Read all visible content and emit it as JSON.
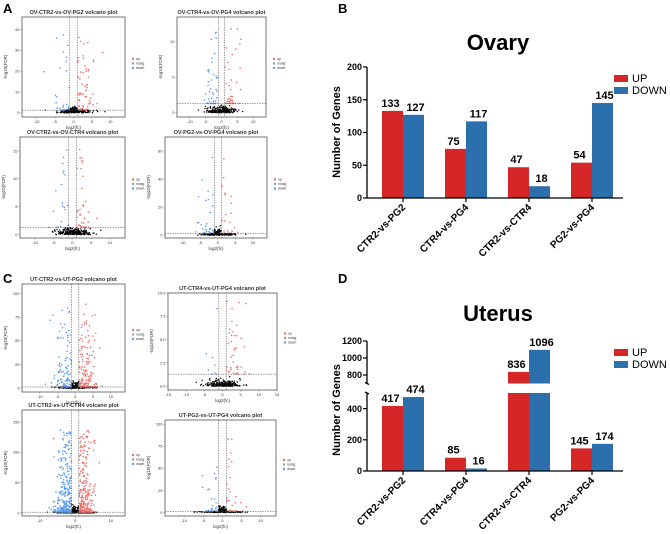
{
  "panels": [
    "A",
    "B",
    "C",
    "D"
  ],
  "colors": {
    "up": "#d62728",
    "down": "#2b6fad",
    "vol_up": "#f0706a",
    "vol_down": "#5b9cf0",
    "vol_nosig": "#000000"
  },
  "chart_data": [
    {
      "type": "scatter",
      "panel": "A",
      "title": "OV-CTR2-vs-OV-PG2 volcano plot",
      "xlabel": "log2(fc)",
      "ylabel": "-log10(FDR)",
      "legend": [
        "up",
        "nosig",
        "down"
      ],
      "xticks": [
        -10,
        -5,
        0,
        5,
        10
      ],
      "yticks": [
        0,
        10,
        20,
        30,
        40
      ],
      "xlim": [
        -14,
        14
      ],
      "ylim": [
        -2,
        46
      ],
      "fc_threshold": 1,
      "fdr_threshold": 1.3
    },
    {
      "type": "scatter",
      "panel": "A",
      "title": "OV-CTR4-vs-OV-PG4 volcano plot",
      "xlabel": "log2(fc)",
      "ylabel": "-log10(FDR)",
      "legend": [
        "up",
        "nosig",
        "down"
      ],
      "xticks": [
        -10,
        -5,
        0,
        5,
        10
      ],
      "yticks": [
        0,
        5,
        10
      ],
      "xlim": [
        -14,
        14
      ],
      "ylim": [
        -0.6,
        13.5
      ],
      "fc_threshold": 1,
      "fdr_threshold": 1.3
    },
    {
      "type": "scatter",
      "panel": "A",
      "title": "OV-CTR2-vs-OV-CTR4 volcano plot",
      "xlabel": "log2(fc)",
      "ylabel": "-log10(FDR)",
      "legend": [
        "up",
        "nosig",
        "down"
      ],
      "xticks": [
        -10,
        -5,
        0,
        5,
        10
      ],
      "yticks": [
        0,
        5,
        10,
        15
      ],
      "xlim": [
        -14,
        14
      ],
      "ylim": [
        -0.6,
        17.5
      ],
      "fc_threshold": 1,
      "fdr_threshold": 1.3
    },
    {
      "type": "scatter",
      "panel": "A",
      "title": "OV-PG2-vs-OV-PG4 volcano plot",
      "xlabel": "log2(fc)",
      "ylabel": "-log10(FDR)",
      "legend": [
        "up",
        "nosig",
        "down"
      ],
      "xticks": [
        -10,
        -5,
        0,
        5,
        10
      ],
      "yticks": [
        0,
        20,
        40,
        60
      ],
      "xlim": [
        -15,
        14
      ],
      "ylim": [
        -2,
        70
      ],
      "fc_threshold": 1,
      "fdr_threshold": 1.3
    },
    {
      "type": "scatter",
      "panel": "C",
      "title": "UT-CTR2-vs-UT-PG2 volcano plot",
      "xlabel": "log2(fc)",
      "ylabel": "-log10(FDR)",
      "legend": [
        "up",
        "nosig",
        "down"
      ],
      "xticks": [
        -10,
        -5,
        0,
        5,
        10
      ],
      "yticks": [
        0,
        25,
        50,
        75,
        100
      ],
      "xlim": [
        -15,
        14
      ],
      "ylim": [
        -4,
        110
      ],
      "fc_threshold": 1,
      "fdr_threshold": 1.3
    },
    {
      "type": "scatter",
      "panel": "C",
      "title": "UT-CTR4-vs-UT-PG4 volcano plot",
      "xlabel": "log2(fc)",
      "ylabel": "-log10(FDR)",
      "legend": [
        "up",
        "nosig",
        "down"
      ],
      "xticks": [
        -15,
        -10,
        -5,
        0,
        5,
        10,
        15
      ],
      "yticks": [
        "0.0",
        "2.5",
        "5.0",
        "7.5",
        "10.0"
      ],
      "xlim": [
        -15,
        15
      ],
      "ylim": [
        -0.4,
        10
      ],
      "fc_threshold": 1,
      "fdr_threshold": 1.3
    },
    {
      "type": "scatter",
      "panel": "C",
      "title": "UT-CTR2-vs-UT-CTR4 volcano plot",
      "xlabel": "log2(fc)",
      "ylabel": "-log10(FDR)",
      "legend": [
        "up",
        "nosig",
        "down"
      ],
      "xticks": [
        -10,
        0,
        10
      ],
      "yticks": [
        0,
        50,
        100,
        150
      ],
      "xlim": [
        -15,
        14
      ],
      "ylim": [
        -5,
        170
      ],
      "fc_threshold": 1,
      "fdr_threshold": 1.3
    },
    {
      "type": "scatter",
      "panel": "C",
      "title": "UT-PG2-vs-UT-PG4 volcano plot",
      "xlabel": "log2(fc)",
      "ylabel": "-log10(FDR)",
      "legend": [
        "up",
        "nosig",
        "down"
      ],
      "xticks": [
        -10,
        -5,
        0,
        5,
        10
      ],
      "yticks": [
        0,
        25,
        50,
        75,
        100
      ],
      "xlim": [
        -15,
        14
      ],
      "ylim": [
        -4,
        105
      ],
      "fc_threshold": 1,
      "fdr_threshold": 1.3
    },
    {
      "type": "bar",
      "panel": "B",
      "title": "Ovary",
      "ylabel": "Number of Genes",
      "categories": [
        "CTR2-vs-PG2",
        "CTR4-vs-PG4",
        "CTR2-vs-CTR4",
        "PG2-vs-PG4"
      ],
      "series": [
        {
          "name": "UP",
          "values": [
            133,
            75,
            47,
            54
          ]
        },
        {
          "name": "DOWN",
          "values": [
            127,
            117,
            18,
            145
          ]
        }
      ],
      "yticks": [
        0,
        50,
        100,
        150,
        200
      ],
      "ylim": [
        0,
        200
      ],
      "legend": "right"
    },
    {
      "type": "bar",
      "panel": "D",
      "title": "Uterus",
      "ylabel": "Number of Genes",
      "categories": [
        "CTR2-vs-PG2",
        "CTR4-vs-PG4",
        "CTR2-vs-CTR4",
        "PG2-vs-PG4"
      ],
      "series": [
        {
          "name": "UP",
          "values": [
            417,
            85,
            836,
            145
          ]
        },
        {
          "name": "DOWN",
          "values": [
            474,
            16,
            1096,
            174
          ]
        }
      ],
      "yticks": [
        0,
        200,
        400,
        800,
        1000,
        1200
      ],
      "ylim": [
        0,
        1200
      ],
      "axis_break": [
        500,
        700
      ],
      "legend": "right"
    }
  ]
}
